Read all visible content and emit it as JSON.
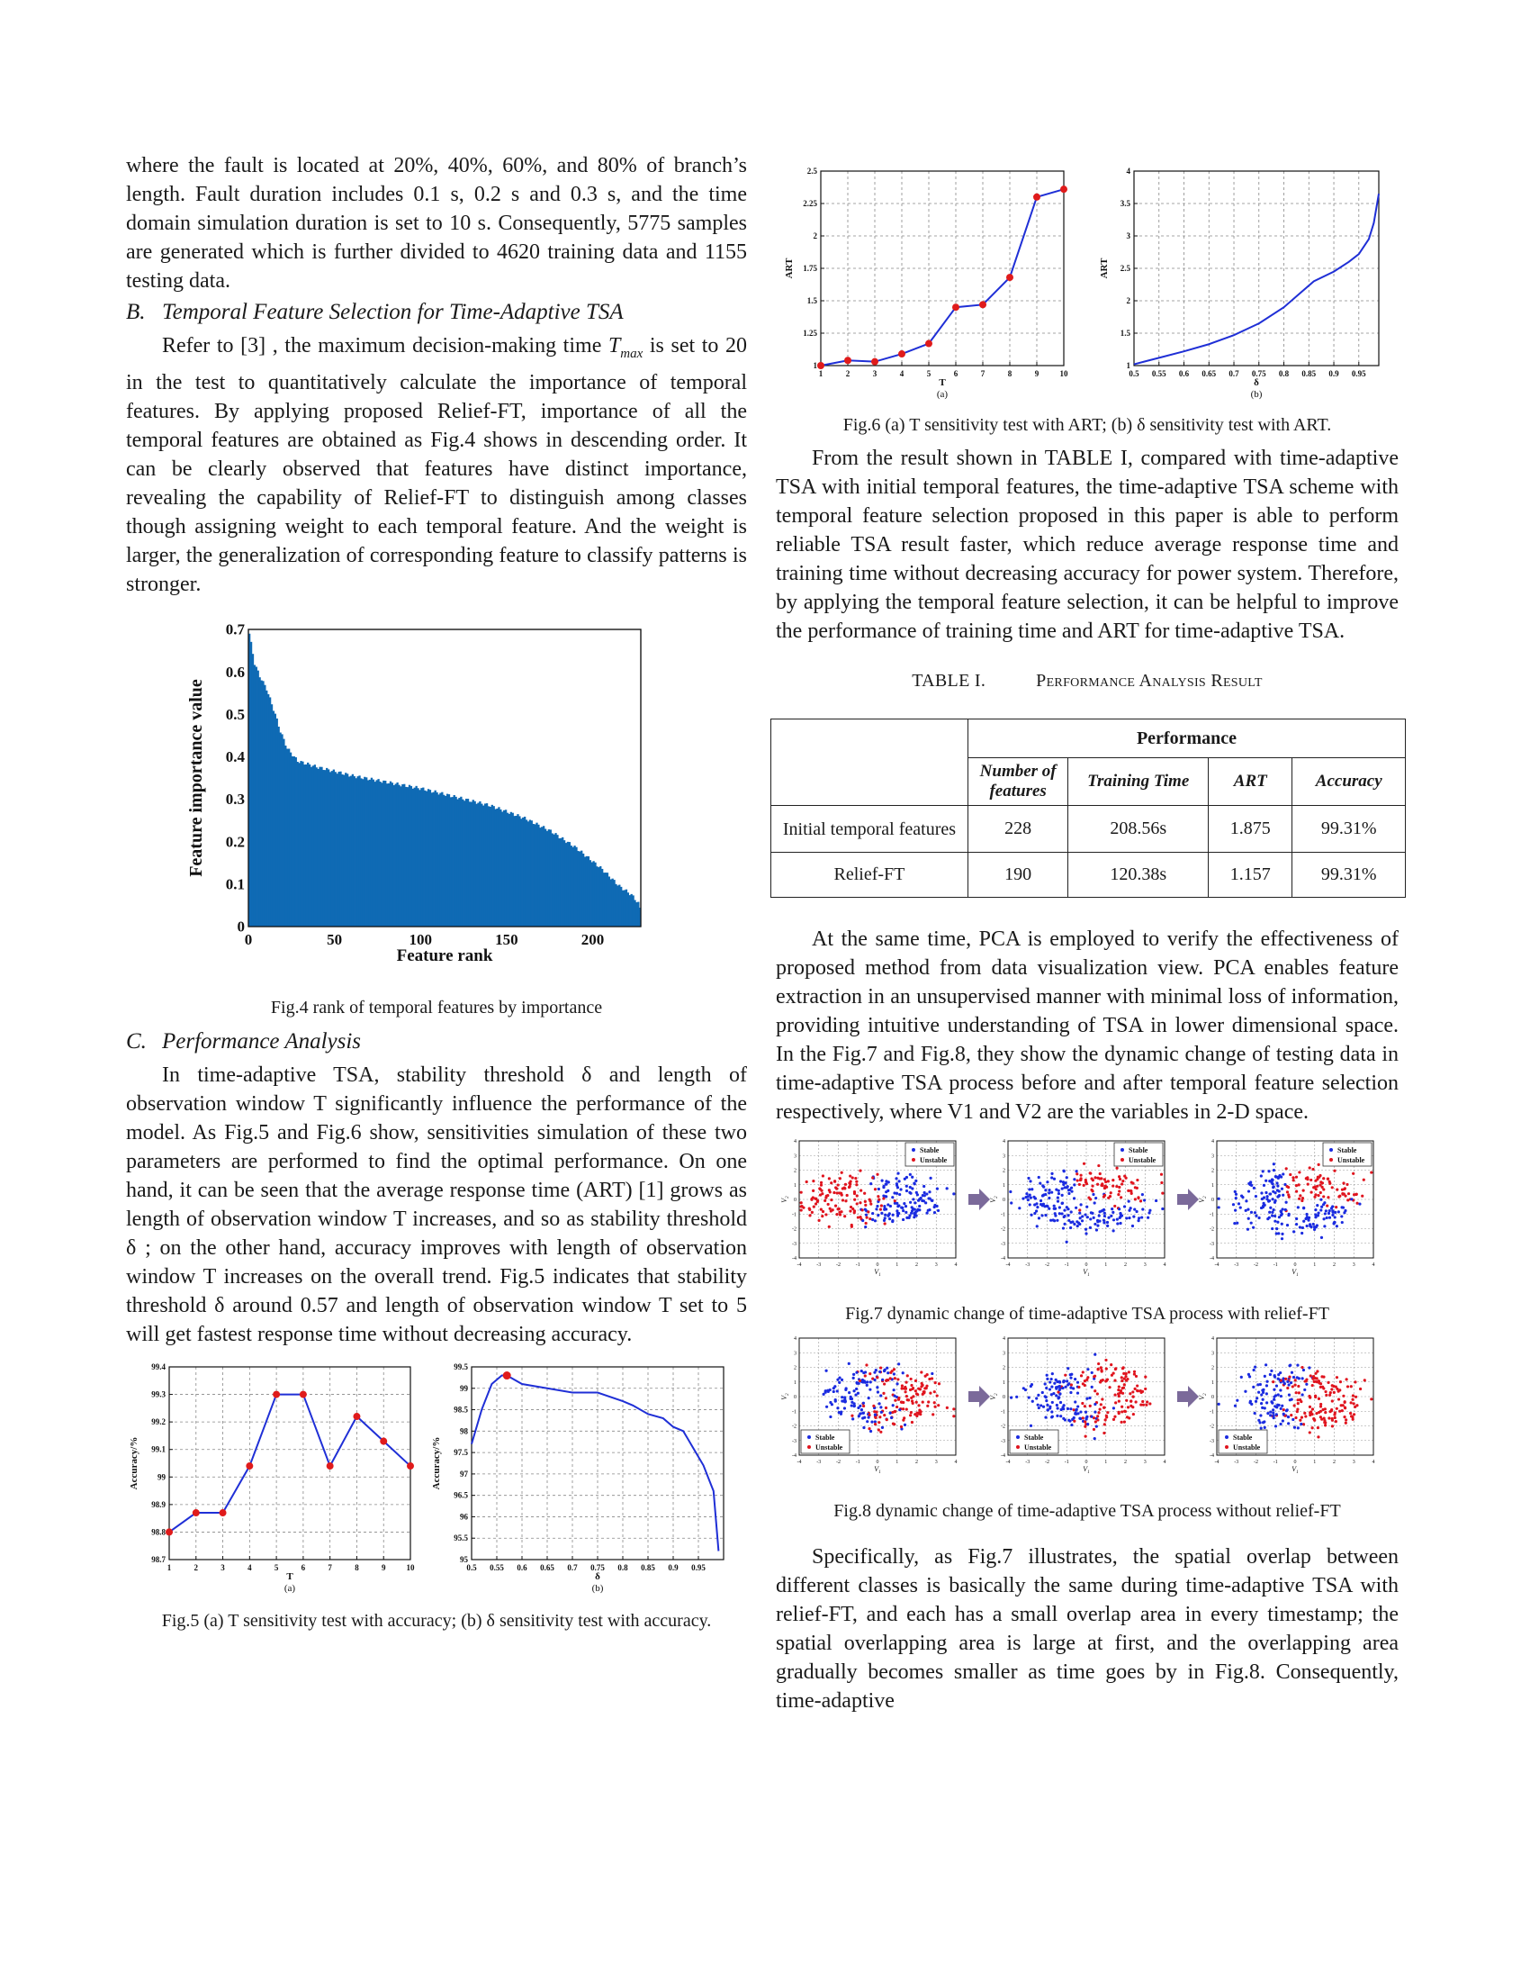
{
  "left_column": {
    "para_intro": "where the fault is located at 20%, 40%, 60%, and 80% of branch’s length. Fault duration includes 0.1 s, 0.2 s and 0.3 s, and the time domain simulation duration is set to 10 s. Consequently, 5775 samples are generated which is further divided to 4620 training data and 1155 testing data.",
    "section_b_num": "B.",
    "section_b_title": "Temporal Feature Selection for Time-Adaptive TSA",
    "para_b_pre": "Refer to [3] , the maximum decision-making time",
    "tmax_symbol": "T",
    "tmax_sub": "max",
    "para_b_post": "is set to 20 in the test to quantitatively calculate the importance of temporal features. By applying proposed Relief-FT, importance of all the temporal features are obtained as Fig.4 shows in descending order. It can be clearly observed that features have distinct importance, revealing the capability of Relief-FT to distinguish among classes though assigning weight to each temporal feature. And the weight is larger, the generalization of corresponding feature to classify patterns is stronger.",
    "fig4_caption": "Fig.4 rank of temporal features by importance",
    "section_c_num": "C.",
    "section_c_title": "Performance Analysis",
    "para_c": "In time-adaptive TSA, stability threshold δ and length of observation window T significantly influence the performance of the model. As Fig.5 and Fig.6 show, sensitivities simulation of these two parameters are performed to find the optimal performance. On one hand, it can be seen that the average response time (ART) [1] grows as length of observation window T increases, and so as stability threshold δ ; on the other hand, accuracy improves with length of observation window T increases on the overall trend. Fig.5 indicates that stability threshold δ around 0.57 and length of observation window T set to 5 will get fastest response time without decreasing accuracy.",
    "fig5_caption": "Fig.5 (a) T sensitivity test with accuracy; (b) δ sensitivity test with accuracy."
  },
  "right_column": {
    "fig6_caption": "Fig.6 (a) T sensitivity test with ART; (b) δ sensitivity test with ART.",
    "para_result": "From the result shown in TABLE I, compared with time-adaptive TSA with initial temporal features, the time-adaptive TSA scheme with temporal feature selection proposed in this paper is able to perform reliable TSA result faster, which reduce average response time and training time without decreasing accuracy for power system. Therefore, by applying the temporal feature selection, it can be helpful to improve the performance of training time and ART for time-adaptive TSA.",
    "table_label": "TABLE I.",
    "table_title": "Performance Analysis Result",
    "table": {
      "group_header": "Performance",
      "columns": [
        "Number of features",
        "Training Time",
        "ART",
        "Accuracy"
      ],
      "rows": [
        {
          "name": "Initial temporal features",
          "values": [
            "228",
            "208.56s",
            "1.875",
            "99.31%"
          ]
        },
        {
          "name": "Relief-FT",
          "values": [
            "190",
            "120.38s",
            "1.157",
            "99.31%"
          ]
        }
      ]
    },
    "para_pca": "At the same time, PCA is employed to verify the effectiveness of proposed method from data visualization view. PCA enables feature extraction in an unsupervised manner with minimal loss of information, providing intuitive understanding of TSA in lower dimensional space. In the Fig.7 and Fig.8, they show the dynamic change of testing data in time-adaptive TSA process before and after temporal feature selection respectively, where V1 and V2 are the variables in 2-D space.",
    "fig7_caption": "Fig.7 dynamic change of time-adaptive TSA process with relief-FT",
    "fig8_caption": "Fig.8 dynamic change of time-adaptive TSA process without relief-FT",
    "para_final": "Specifically, as Fig.7 illustrates, the spatial overlap between different classes is basically the same during time-adaptive TSA with relief-FT, and each has a small overlap area in every timestamp; the spatial overlapping area is large at first, and the overlapping area gradually becomes smaller as time goes by in Fig.8. Consequently, time-adaptive"
  },
  "chart_data": [
    {
      "id": "fig4",
      "type": "bar",
      "xlabel": "Feature rank",
      "ylabel": "Feature importance value",
      "xlim": [
        0,
        228
      ],
      "ylim": [
        0,
        0.7
      ],
      "xticks": [
        0,
        50,
        100,
        150,
        200
      ],
      "yticks": [
        0,
        0.1,
        0.2,
        0.3,
        0.4,
        0.5,
        0.6,
        0.7
      ],
      "color": "#0f6ab4",
      "profile": [
        [
          0,
          0.69
        ],
        [
          3,
          0.62
        ],
        [
          6,
          0.59
        ],
        [
          10,
          0.56
        ],
        [
          15,
          0.5
        ],
        [
          18,
          0.46
        ],
        [
          22,
          0.42
        ],
        [
          28,
          0.39
        ],
        [
          40,
          0.375
        ],
        [
          60,
          0.355
        ],
        [
          80,
          0.34
        ],
        [
          100,
          0.325
        ],
        [
          120,
          0.305
        ],
        [
          140,
          0.285
        ],
        [
          160,
          0.255
        ],
        [
          175,
          0.225
        ],
        [
          190,
          0.185
        ],
        [
          205,
          0.135
        ],
        [
          215,
          0.095
        ],
        [
          222,
          0.075
        ],
        [
          226,
          0.055
        ],
        [
          228,
          0.03
        ]
      ]
    },
    {
      "id": "fig5a",
      "type": "line",
      "xlabel": "T",
      "ylabel": "Accuracy/%",
      "sublabel": "(a)",
      "x": [
        1,
        2,
        3,
        4,
        5,
        6,
        7,
        8,
        9,
        10
      ],
      "y": [
        98.8,
        98.87,
        98.87,
        99.04,
        99.3,
        99.3,
        99.04,
        99.22,
        99.13,
        99.04
      ],
      "xlim": [
        1,
        10
      ],
      "ylim": [
        98.7,
        99.4
      ],
      "xticks": [
        1,
        2,
        3,
        4,
        5,
        6,
        7,
        8,
        9,
        10
      ],
      "yticks": [
        98.7,
        98.8,
        98.9,
        99,
        99.1,
        99.2,
        99.3,
        99.4
      ],
      "color": "#1f2fd6",
      "marker_color": "#e01b1b"
    },
    {
      "id": "fig5b",
      "type": "line",
      "xlabel": "δ",
      "ylabel": "Accuracy/%",
      "sublabel": "(b)",
      "x": [
        0.5,
        0.52,
        0.54,
        0.56,
        0.57,
        0.6,
        0.65,
        0.7,
        0.75,
        0.8,
        0.82,
        0.85,
        0.88,
        0.9,
        0.92,
        0.94,
        0.96,
        0.98,
        0.99
      ],
      "y": [
        97.7,
        98.5,
        99.1,
        99.3,
        99.3,
        99.1,
        99.0,
        98.9,
        98.9,
        98.7,
        98.6,
        98.4,
        98.3,
        98.1,
        98.0,
        97.6,
        97.2,
        96.6,
        95.2
      ],
      "highlight": [
        0.57,
        99.3
      ],
      "xlim": [
        0.5,
        1.0
      ],
      "ylim": [
        95,
        99.5
      ],
      "xticks": [
        0.5,
        0.55,
        0.6,
        0.65,
        0.7,
        0.75,
        0.8,
        0.85,
        0.9,
        0.95
      ],
      "yticks": [
        95,
        95.5,
        96,
        96.5,
        97,
        97.5,
        98,
        98.5,
        99,
        99.5
      ],
      "color": "#1f2fd6",
      "marker_color": "#e01b1b"
    },
    {
      "id": "fig6a",
      "type": "line",
      "xlabel": "T",
      "ylabel": "ART",
      "sublabel": "(a)",
      "x": [
        1,
        2,
        3,
        4,
        5,
        6,
        7,
        8,
        9,
        10
      ],
      "y": [
        1.0,
        1.04,
        1.03,
        1.09,
        1.17,
        1.45,
        1.47,
        1.68,
        2.3,
        2.36
      ],
      "xlim": [
        1,
        10
      ],
      "ylim": [
        1,
        2.5
      ],
      "xticks": [
        1,
        2,
        3,
        4,
        5,
        6,
        7,
        8,
        9,
        10
      ],
      "yticks": [
        1,
        1.25,
        1.5,
        1.75,
        2,
        2.25,
        2.5
      ],
      "color": "#1f2fd6",
      "marker_color": "#e01b1b"
    },
    {
      "id": "fig6b",
      "type": "line",
      "xlabel": "δ",
      "ylabel": "ART",
      "sublabel": "(b)",
      "x": [
        0.5,
        0.55,
        0.6,
        0.65,
        0.7,
        0.75,
        0.8,
        0.83,
        0.86,
        0.9,
        0.93,
        0.95,
        0.97,
        0.98,
        0.99
      ],
      "y": [
        1.02,
        1.12,
        1.22,
        1.33,
        1.47,
        1.65,
        1.9,
        2.1,
        2.3,
        2.45,
        2.6,
        2.72,
        2.95,
        3.2,
        3.65
      ],
      "xlim": [
        0.5,
        0.99
      ],
      "ylim": [
        1,
        4
      ],
      "xticks": [
        0.5,
        0.55,
        0.6,
        0.65,
        0.7,
        0.75,
        0.8,
        0.85,
        0.9,
        0.95
      ],
      "yticks": [
        1,
        1.5,
        2,
        2.5,
        3,
        3.5,
        4
      ],
      "color": "#1f2fd6"
    },
    {
      "id": "fig7",
      "type": "scatter",
      "xlabel": "V1",
      "ylabel": "V2",
      "legend": [
        "Stable",
        "Unstable"
      ],
      "legend_position": "top-right",
      "colors": {
        "Stable": "#1a2be0",
        "Unstable": "#e0141e"
      },
      "panels": 3,
      "xlim": [
        -4,
        4
      ],
      "ylim": [
        -4,
        4
      ],
      "xticks": [
        -4,
        -3,
        -2,
        -1,
        0,
        1,
        2,
        3,
        4
      ],
      "yticks": [
        -4,
        -3,
        -2,
        -1,
        0,
        1,
        2,
        3,
        4
      ]
    },
    {
      "id": "fig8",
      "type": "scatter",
      "xlabel": "V1",
      "ylabel": "V2",
      "legend": [
        "Stable",
        "Unstable"
      ],
      "legend_position": "bottom-left",
      "colors": {
        "Stable": "#1a2be0",
        "Unstable": "#e0141e"
      },
      "panels": 3,
      "xlim": [
        -4,
        4
      ],
      "ylim": [
        -4,
        4
      ],
      "xticks": [
        -4,
        -3,
        -2,
        -1,
        0,
        1,
        2,
        3,
        4
      ],
      "yticks": [
        -4,
        -3,
        -2,
        -1,
        0,
        1,
        2,
        3,
        4
      ]
    }
  ]
}
